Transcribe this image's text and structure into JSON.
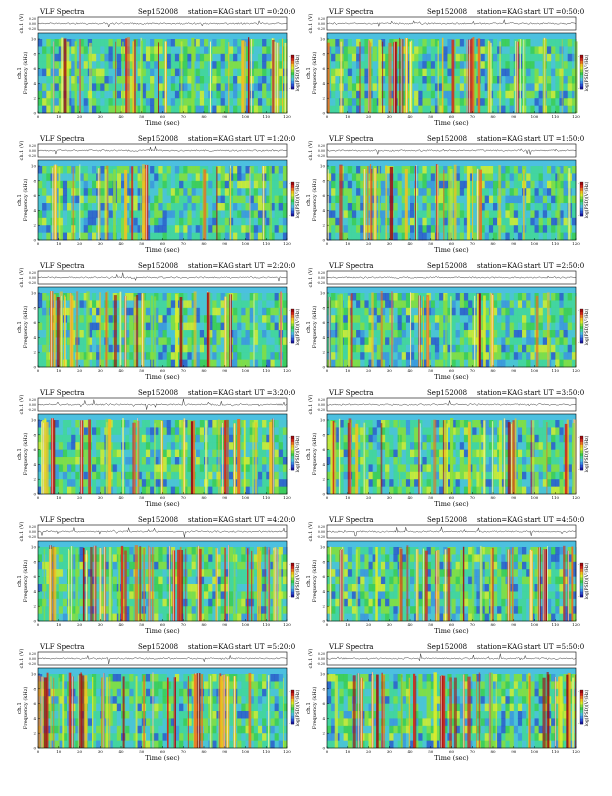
{
  "header_common": {
    "title": "VLF Spectra",
    "date": "Sep152008",
    "station": "station=KAG",
    "start_prefix": "start  UT ="
  },
  "axes": {
    "wave_ylabel": "ch.1 (V)",
    "wave_ticks": [
      "0.20",
      "0.00",
      "-0.20"
    ],
    "spec_ylabel": "Frequency (kHz)",
    "spec_ylabel_prefix": "ch.1",
    "spec_yticks": [
      "10",
      "8",
      "6",
      "4",
      "2",
      "0"
    ],
    "xlabel": "Time (sec)",
    "xticks": [
      "0",
      "10",
      "20",
      "30",
      "40",
      "50",
      "60",
      "70",
      "80",
      "90",
      "100",
      "110",
      "120"
    ],
    "colorbar_label": "log(PSD)(V²/Hz)",
    "colorbar_range": "-"
  },
  "colors": {
    "scale": [
      "#1a1aa6",
      "#2a52d6",
      "#3c90e8",
      "#4cc0e0",
      "#44d4a0",
      "#3ccc50",
      "#8ade3a",
      "#dcec2a",
      "#f4c020",
      "#ec7020",
      "#d42818",
      "#a00c10"
    ]
  },
  "chart_data": [
    {
      "type": "heatmap",
      "start_time": "0:20:0",
      "xlim": [
        0,
        120
      ],
      "ylim": [
        0,
        10
      ],
      "activity": 0.35
    },
    {
      "type": "heatmap",
      "start_time": "0:50:0",
      "xlim": [
        0,
        120
      ],
      "ylim": [
        0,
        10
      ],
      "activity": 0.45
    },
    {
      "type": "heatmap",
      "start_time": "1:20:0",
      "xlim": [
        0,
        120
      ],
      "ylim": [
        0,
        10
      ],
      "activity": 0.15
    },
    {
      "type": "heatmap",
      "start_time": "1:50:0",
      "xlim": [
        0,
        120
      ],
      "ylim": [
        0,
        10
      ],
      "activity": 0.25
    },
    {
      "type": "heatmap",
      "start_time": "2:20:0",
      "xlim": [
        0,
        120
      ],
      "ylim": [
        0,
        10
      ],
      "activity": 0.45
    },
    {
      "type": "heatmap",
      "start_time": "2:50:0",
      "xlim": [
        0,
        120
      ],
      "ylim": [
        0,
        10
      ],
      "activity": 0.2
    },
    {
      "type": "heatmap",
      "start_time": "3:20:0",
      "xlim": [
        0,
        120
      ],
      "ylim": [
        0,
        10
      ],
      "activity": 0.5
    },
    {
      "type": "heatmap",
      "start_time": "3:50:0",
      "xlim": [
        0,
        120
      ],
      "ylim": [
        0,
        10
      ],
      "activity": 0.5
    },
    {
      "type": "heatmap",
      "start_time": "4:20:0",
      "xlim": [
        0,
        120
      ],
      "ylim": [
        0,
        10
      ],
      "activity": 0.85
    },
    {
      "type": "heatmap",
      "start_time": "4:50:0",
      "xlim": [
        0,
        120
      ],
      "ylim": [
        0,
        10
      ],
      "activity": 0.45
    },
    {
      "type": "heatmap",
      "start_time": "5:20:0",
      "xlim": [
        0,
        120
      ],
      "ylim": [
        0,
        10
      ],
      "activity": 0.75
    },
    {
      "type": "heatmap",
      "start_time": "5:50:0",
      "xlim": [
        0,
        120
      ],
      "ylim": [
        0,
        10
      ],
      "activity": 0.6
    }
  ]
}
